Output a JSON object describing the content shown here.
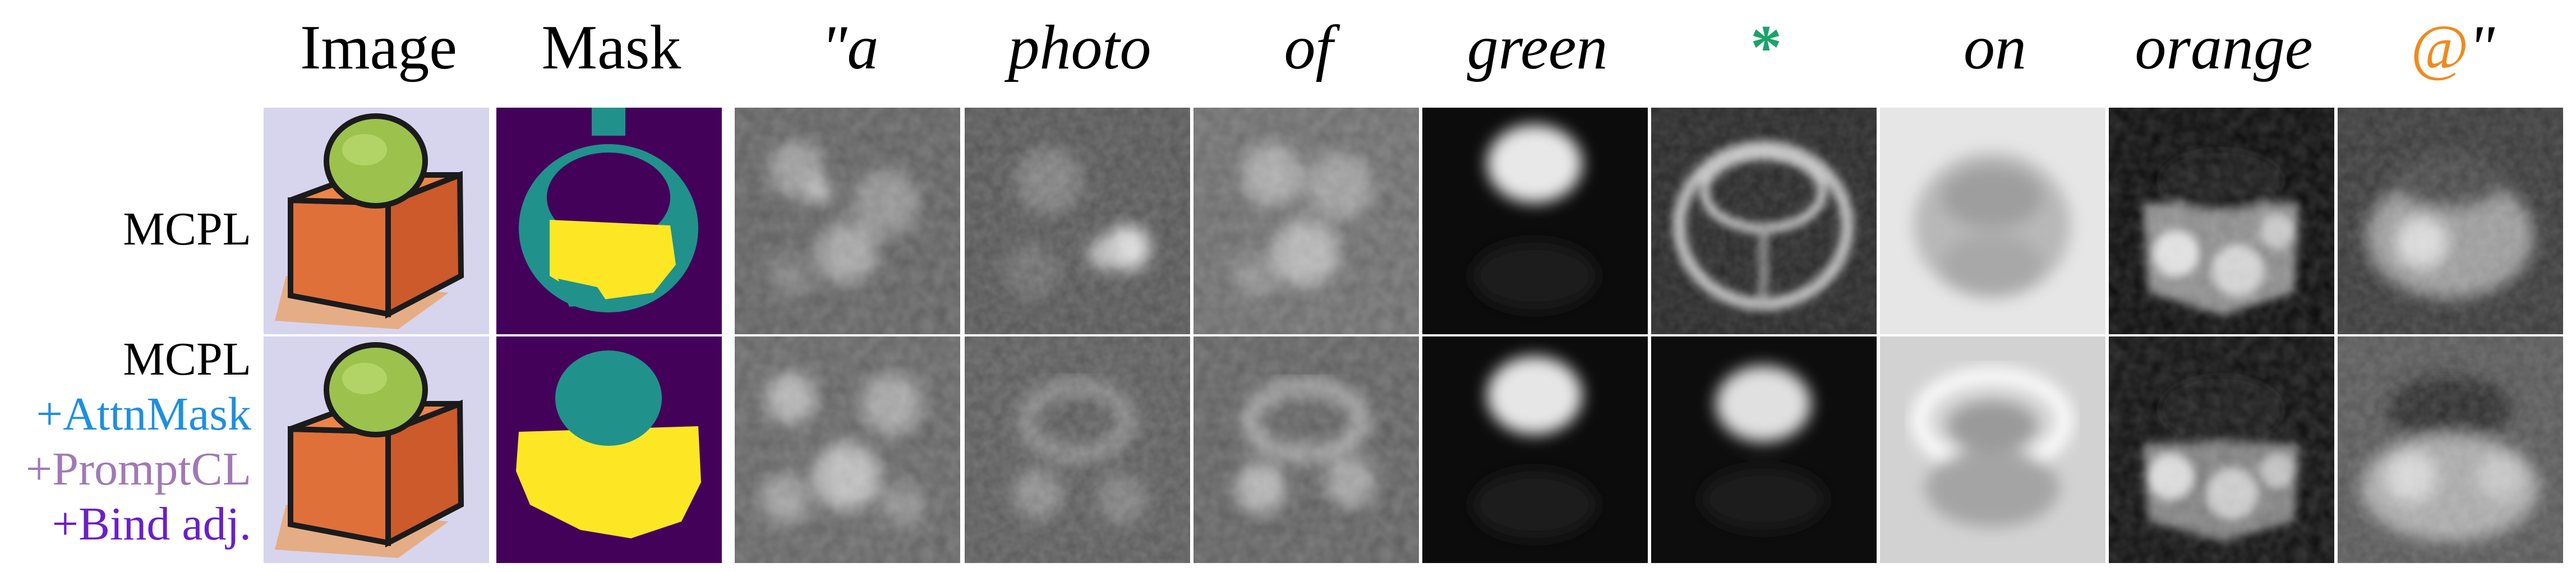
{
  "headers": {
    "image": "Image",
    "mask": "Mask",
    "tokens": [
      "\"a",
      "photo",
      "of",
      "green",
      "*",
      "on",
      "orange",
      "@\""
    ]
  },
  "rows": [
    {
      "label_lines": [
        "MCPL"
      ]
    },
    {
      "label_lines": [
        "MCPL",
        "+AttnMask",
        "+PromptCL",
        "+Bind adj."
      ]
    }
  ],
  "colors": {
    "star_token": "#1aa36b",
    "at_token": "#f08a1e",
    "attnmask": "#1e8fe0",
    "promptcl": "#a079b6",
    "bind_adj": "#6a1fc9",
    "mask_background": "#44015a",
    "mask_teal": "#21918c",
    "mask_yellow": "#fde725"
  }
}
